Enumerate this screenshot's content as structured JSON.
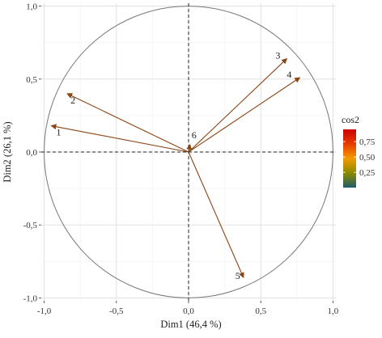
{
  "chart_data": {
    "type": "correlation-circle",
    "xlabel": "Dim1 (46,4 %)",
    "ylabel": "Dim2 (26,1 %)",
    "xlim": [
      -1.02,
      1.02
    ],
    "ylim": [
      -1.02,
      1.02
    ],
    "xticks": [
      -1.0,
      -0.5,
      0.0,
      0.5,
      1.0
    ],
    "xtick_labels": [
      "-1,0",
      "-0,5",
      "0,0",
      "0,5",
      "1,0"
    ],
    "yticks": [
      1.0,
      0.5,
      0.0,
      -0.5,
      -1.0
    ],
    "ytick_labels": [
      "1,0",
      "0,5",
      "0,0",
      "-0,5",
      "-1,0"
    ],
    "grid": true,
    "unit_circle": true,
    "variables": [
      {
        "label": "1",
        "x": -0.95,
        "y": 0.18,
        "cos2": 0.94
      },
      {
        "label": "2",
        "x": -0.84,
        "y": 0.4,
        "cos2": 0.87
      },
      {
        "label": "3",
        "x": 0.68,
        "y": 0.64,
        "cos2": 0.87
      },
      {
        "label": "4",
        "x": 0.77,
        "y": 0.51,
        "cos2": 0.85
      },
      {
        "label": "5",
        "x": 0.38,
        "y": -0.86,
        "cos2": 0.88
      },
      {
        "label": "6",
        "x": 0.01,
        "y": 0.05,
        "cos2": 0.0
      }
    ],
    "legend": {
      "title": "cos2",
      "ticks": [
        0.75,
        0.5,
        0.25
      ],
      "tick_labels": [
        "0,75",
        "0,50",
        "0,25"
      ],
      "range": [
        0.0,
        0.95
      ],
      "colors": [
        "#1f5c6b",
        "#8a8a00",
        "#f29a00",
        "#e63b00",
        "#cc0000"
      ],
      "placement": "right"
    }
  }
}
